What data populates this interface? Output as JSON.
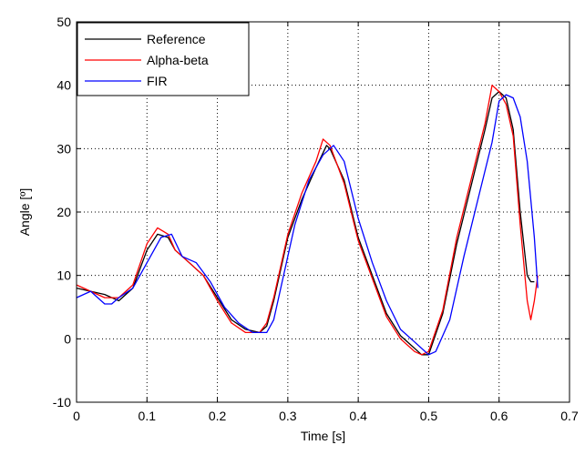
{
  "chart_data": {
    "type": "line",
    "title": "",
    "xlabel": "Time [s]",
    "ylabel": "Angle [º]",
    "xlim": [
      0,
      0.7
    ],
    "ylim": [
      -10,
      50
    ],
    "xticks": [
      0,
      0.1,
      0.2,
      0.3,
      0.4,
      0.5,
      0.6,
      0.7
    ],
    "yticks": [
      -10,
      0,
      10,
      20,
      30,
      40,
      50
    ],
    "xtick_labels": [
      "0",
      "0.1",
      "0.2",
      "0.3",
      "0.4",
      "0.5",
      "0.6",
      "0.7"
    ],
    "ytick_labels": [
      "-10",
      "0",
      "10",
      "20",
      "30",
      "40",
      "50"
    ],
    "grid": true,
    "legend_position": "top-left",
    "series": [
      {
        "name": "Reference",
        "color": "#000000",
        "x": [
          0,
          0.02,
          0.04,
          0.06,
          0.08,
          0.1,
          0.115,
          0.13,
          0.14,
          0.16,
          0.18,
          0.2,
          0.22,
          0.24,
          0.26,
          0.27,
          0.28,
          0.3,
          0.32,
          0.34,
          0.355,
          0.36,
          0.38,
          0.4,
          0.42,
          0.44,
          0.46,
          0.48,
          0.49,
          0.5,
          0.52,
          0.54,
          0.56,
          0.58,
          0.59,
          0.6,
          0.61,
          0.62,
          0.63,
          0.64,
          0.645,
          0.65
        ],
        "y": [
          8,
          7.5,
          7,
          6,
          8,
          14,
          16.5,
          16,
          14,
          12,
          10,
          6.5,
          3,
          1.5,
          1,
          2,
          6,
          16,
          22,
          27,
          30.5,
          30,
          25,
          16,
          10,
          4,
          0.5,
          -1.5,
          -2.5,
          -2.5,
          4,
          15,
          24,
          33,
          38,
          39,
          38,
          33,
          20,
          10,
          9,
          9
        ]
      },
      {
        "name": "Alpha-beta",
        "color": "#ff0000",
        "x": [
          0,
          0.02,
          0.04,
          0.06,
          0.08,
          0.1,
          0.115,
          0.13,
          0.14,
          0.16,
          0.18,
          0.2,
          0.22,
          0.24,
          0.26,
          0.27,
          0.28,
          0.3,
          0.32,
          0.34,
          0.35,
          0.36,
          0.38,
          0.4,
          0.42,
          0.44,
          0.46,
          0.48,
          0.49,
          0.5,
          0.52,
          0.54,
          0.56,
          0.58,
          0.59,
          0.6,
          0.61,
          0.62,
          0.63,
          0.64,
          0.645,
          0.65,
          0.655
        ],
        "y": [
          8.5,
          7.5,
          6.5,
          6.5,
          8.5,
          15,
          17.5,
          16.5,
          14,
          12,
          10,
          6,
          2.5,
          1,
          1,
          2.5,
          6.5,
          16.5,
          23,
          28,
          31.5,
          30.5,
          24.5,
          15.5,
          9.5,
          3.5,
          0,
          -2,
          -2.5,
          -2,
          4.5,
          16,
          25,
          34,
          40,
          39,
          37,
          32,
          18,
          6,
          3,
          6,
          10
        ]
      },
      {
        "name": "FIR",
        "color": "#0000ff",
        "x": [
          0,
          0.02,
          0.04,
          0.05,
          0.06,
          0.08,
          0.1,
          0.12,
          0.135,
          0.15,
          0.17,
          0.19,
          0.21,
          0.23,
          0.25,
          0.27,
          0.28,
          0.29,
          0.31,
          0.33,
          0.35,
          0.365,
          0.38,
          0.4,
          0.42,
          0.44,
          0.46,
          0.48,
          0.5,
          0.51,
          0.53,
          0.55,
          0.57,
          0.59,
          0.6,
          0.61,
          0.62,
          0.63,
          0.64,
          0.65,
          0.655
        ],
        "y": [
          6.5,
          7.5,
          5.5,
          5.5,
          6.5,
          8,
          12,
          16,
          16.5,
          13,
          12,
          9,
          5,
          2.5,
          1,
          1,
          3,
          8,
          18,
          25,
          29,
          30.5,
          28,
          19,
          12,
          6,
          1.5,
          -0.5,
          -2.5,
          -2,
          3,
          13,
          22,
          31,
          37.5,
          38.5,
          38,
          35,
          28,
          16,
          8
        ]
      }
    ]
  }
}
